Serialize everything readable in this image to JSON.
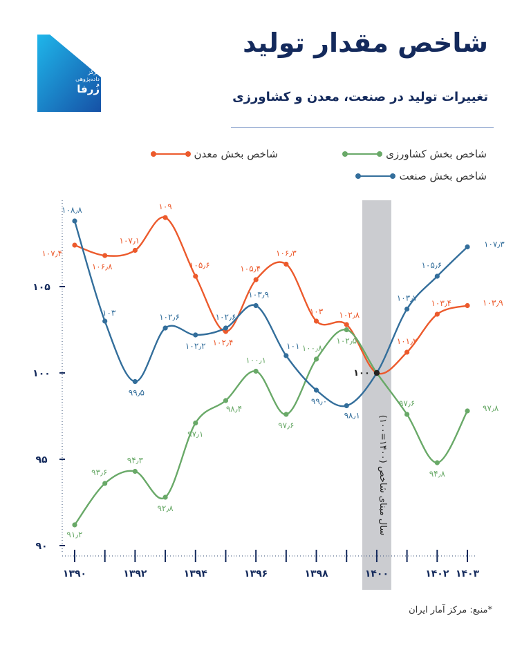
{
  "brand": {
    "name": "زُرفا",
    "tagline_line1": "مرکز",
    "tagline_line2": "داده‌پژوهی",
    "color": "#1a78c2"
  },
  "header": {
    "title": "شاخص مقدار تولید",
    "subtitle": "تغییرات تولید در صنعت، معدن و کشاورزی"
  },
  "legend": {
    "agriculture": "شاخص بخش کشاورزی",
    "mining": "شاخص بخش معدن",
    "industry": "شاخص بخش صنعت"
  },
  "footer": {
    "source": "*منبع: مرکز آمار ایران"
  },
  "chart_data": {
    "type": "line",
    "x": [
      1390,
      1391,
      1392,
      1393,
      1394,
      1395,
      1396,
      1397,
      1398,
      1399,
      1400,
      1401,
      1402,
      1403
    ],
    "x_tick_labels": [
      "۱۳۹۰",
      "۱۳۹۲",
      "۱۳۹۴",
      "۱۳۹۶",
      "۱۳۹۸",
      "۱۴۰۰",
      "۱۴۰۲",
      "۱۴۰۳"
    ],
    "x_tick_values": [
      1390,
      1392,
      1394,
      1396,
      1398,
      1400,
      1402,
      1403
    ],
    "y_tick_labels": [
      "۹۰",
      "۹۵",
      "۱۰۰",
      "۱۰۵"
    ],
    "y_tick_values": [
      90,
      95,
      100,
      105
    ],
    "ylim": [
      90,
      109.8
    ],
    "xlabel": "",
    "ylabel": "",
    "base_year_label": "سال مبنای شاخص (۱۴۰۰=۱۰۰)",
    "base_year": 1400,
    "base_value_label": "۱۰۰",
    "grid": false,
    "series": [
      {
        "key": "mining",
        "name": "شاخص بخش معدن",
        "color": "#ec5a2c",
        "values": [
          107.4,
          106.8,
          107.1,
          109,
          105.6,
          102.4,
          105.4,
          106.3,
          103,
          102.8,
          100,
          101.2,
          103.4,
          103.9
        ],
        "labels": [
          "۱۰۷٫۴",
          "۱۰۶٫۸",
          "۱۰۷٫۱",
          "۱۰۹",
          "۱۰۵٫۶",
          "۱۰۲٫۴",
          "۱۰۵٫۴",
          "۱۰۶٫۳",
          "۱۰۳",
          "۱۰۲٫۸",
          "",
          "۱۰۱٫۲",
          "۱۰۳٫۴",
          "۱۰۳٫۹"
        ]
      },
      {
        "key": "agriculture",
        "name": "شاخص بخش کشاورزی",
        "color": "#69a968",
        "values": [
          91.2,
          93.6,
          94.3,
          92.8,
          97.1,
          98.4,
          100.1,
          97.6,
          100.8,
          102.5,
          100,
          97.6,
          94.8,
          97.8
        ],
        "labels": [
          "۹۱٫۲",
          "۹۳٫۶",
          "۹۴٫۳",
          "۹۲٫۸",
          "۹۷٫۱",
          "۹۸٫۴",
          "۱۰۰٫۱",
          "۹۷٫۶",
          "۱۰۰٫۸",
          "۱۰۲٫۵",
          "",
          "۹۷٫۶",
          "۹۴٫۸",
          "۹۷٫۸"
        ]
      },
      {
        "key": "industry",
        "name": "شاخص بخش صنعت",
        "color": "#336e9b",
        "values": [
          108.8,
          103,
          99.5,
          102.6,
          102.2,
          102.6,
          103.9,
          101,
          99,
          98.1,
          100,
          103.7,
          105.6,
          107.3
        ],
        "labels": [
          "۱۰۸٫۸",
          "۱۰۳",
          "۹۹٫۵",
          "۱۰۲٫۶",
          "۱۰۲٫۲",
          "۱۰۲٫۶",
          "۱۰۳٫۹",
          "۱۰۱",
          "۹۹٫۰",
          "۹۸٫۱",
          "",
          "۱۰۳٫۷",
          "۱۰۵٫۶",
          "۱۰۷٫۳"
        ]
      }
    ]
  }
}
